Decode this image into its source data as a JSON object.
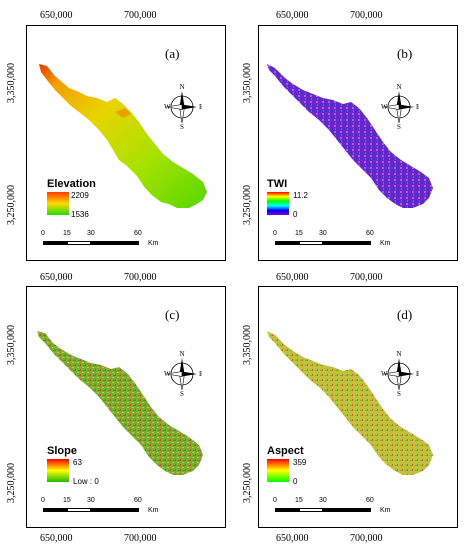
{
  "panels": [
    {
      "label": "(a)",
      "legend_title": "Elevation",
      "legend_max": "2209",
      "legend_min": "1536",
      "legend_colors": [
        "#ff3b00",
        "#ffd900",
        "#22dd00"
      ],
      "map_colors": [
        "#e23b00",
        "#f2c200",
        "#b3e400",
        "#66d800"
      ]
    },
    {
      "label": "(b)",
      "legend_title": "TWI",
      "legend_max": "11.2",
      "legend_min": "0",
      "legend_colors": [
        "#ff0000",
        "#ffff00",
        "#00ff00",
        "#00ffff",
        "#0000ff",
        "#7a00cc"
      ],
      "map_colors": [
        "#5b1cc8",
        "#7a2dd0",
        "#2a39c4",
        "#b25cd8"
      ]
    },
    {
      "label": "(c)",
      "legend_title": "Slope",
      "legend_max": "63",
      "legend_min": "Low : 0",
      "legend_colors": [
        "#ff0000",
        "#ffff00",
        "#22b800"
      ],
      "map_colors": [
        "#6fa82e",
        "#a7c43a",
        "#d2c33d",
        "#4d9a2a"
      ]
    },
    {
      "label": "(d)",
      "legend_title": "Aspect",
      "legend_max": "359",
      "legend_min": "0",
      "legend_colors": [
        "#ff0000",
        "#ffff00",
        "#00ff00"
      ],
      "map_colors": [
        "#b6c33b",
        "#dfb53a",
        "#d66e2c",
        "#8ab838"
      ]
    }
  ],
  "axes": {
    "top_left_tick": "650,000",
    "top_right_tick": "700,000",
    "left_top_tick": "3,350,000",
    "left_bottom_tick": "3,250,000"
  },
  "compass": {
    "n": "N",
    "s": "S",
    "e": "E",
    "w": "W"
  },
  "scale_bar": {
    "ticks": [
      "0",
      "15",
      "30",
      "60"
    ],
    "unit": "Km"
  }
}
